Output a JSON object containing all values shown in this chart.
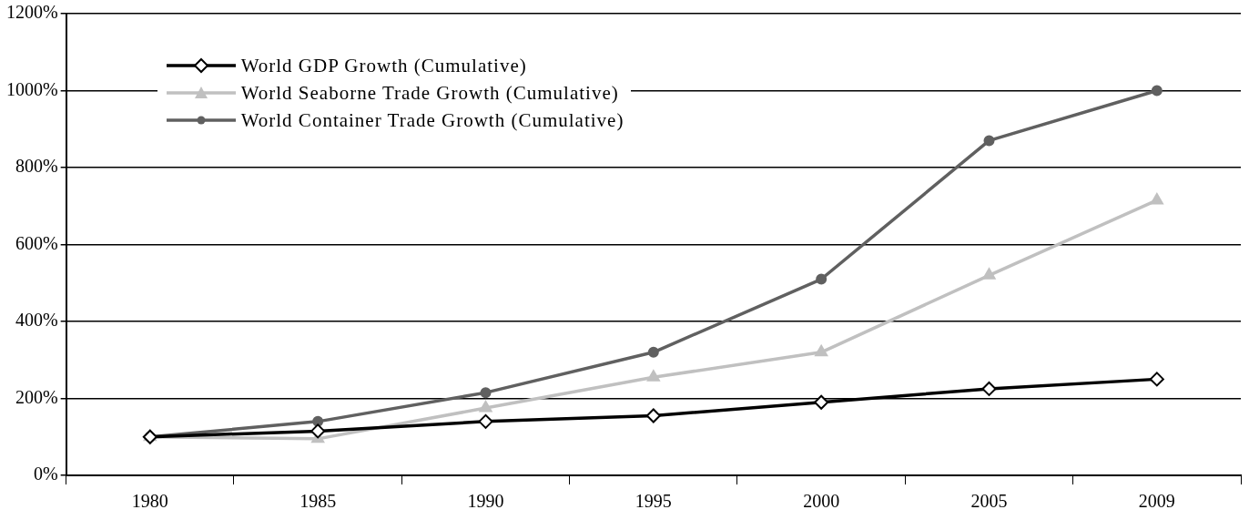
{
  "chart_data": {
    "type": "line",
    "categories": [
      "1980",
      "1985",
      "1990",
      "1995",
      "2000",
      "2005",
      "2009"
    ],
    "series": [
      {
        "name": "World GDP Growth (Cumulative)",
        "color": "#000000",
        "marker": "diamond",
        "values": [
          100,
          115,
          140,
          155,
          190,
          225,
          250
        ]
      },
      {
        "name": "World Seaborne Trade Growth (Cumulative)",
        "color": "#c0c0c0",
        "marker": "triangle",
        "values": [
          100,
          95,
          175,
          255,
          320,
          520,
          715
        ]
      },
      {
        "name": "World Container Trade Growth (Cumulative)",
        "color": "#606060",
        "marker": "circle",
        "values": [
          100,
          140,
          215,
          320,
          510,
          870,
          1000
        ]
      }
    ],
    "ylim": [
      0,
      1200
    ],
    "yticks": [
      {
        "value": 0,
        "label": "0%"
      },
      {
        "value": 200,
        "label": "200%"
      },
      {
        "value": 400,
        "label": "400%"
      },
      {
        "value": 600,
        "label": "600%"
      },
      {
        "value": 800,
        "label": "800%"
      },
      {
        "value": 1000,
        "label": "1000%"
      },
      {
        "value": 1200,
        "label": "1200%"
      }
    ],
    "grid": "y",
    "legend": "top left",
    "line_style": "solid"
  }
}
